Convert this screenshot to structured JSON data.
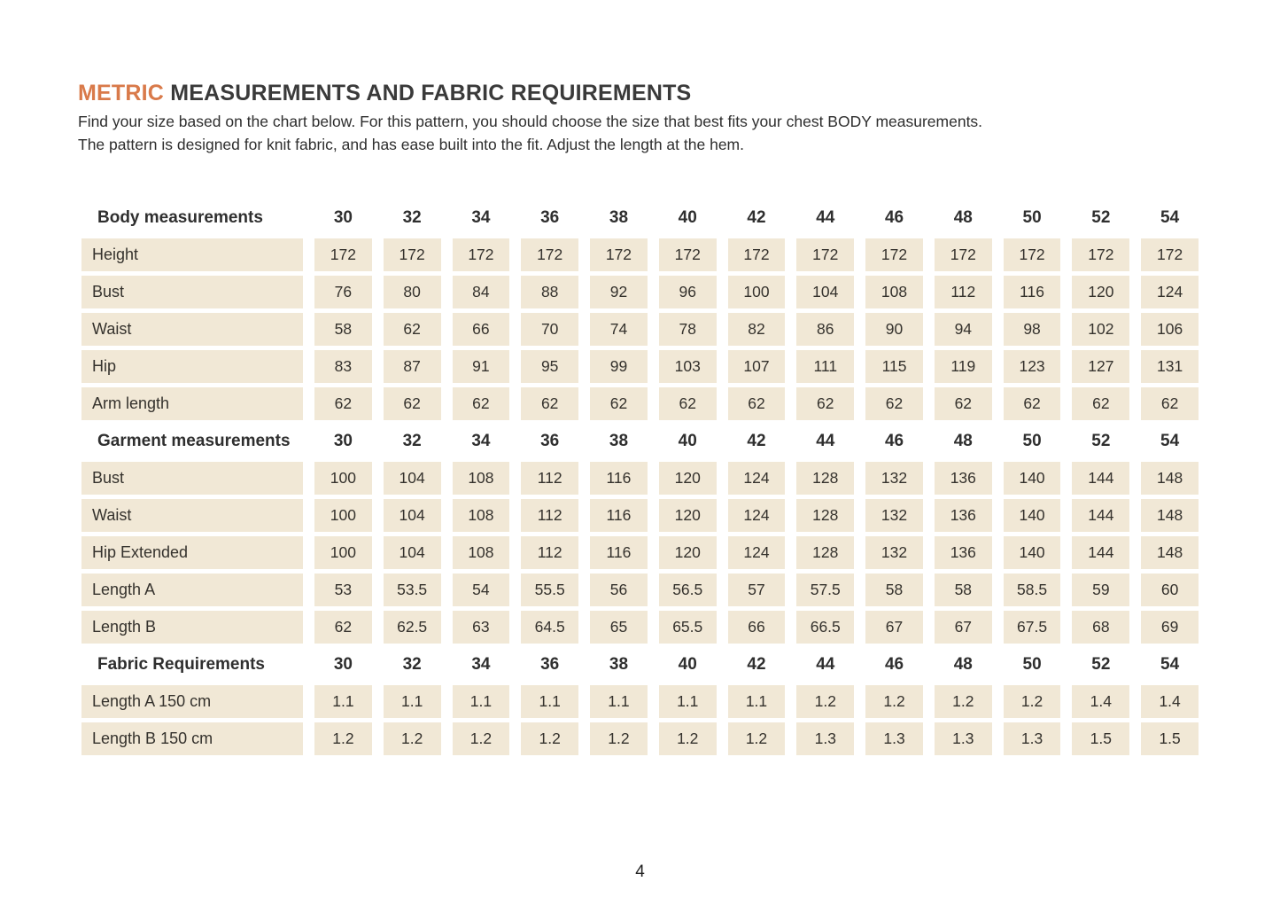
{
  "title": {
    "highlight": "METRIC",
    "rest": "MEASUREMENTS AND FABRIC REQUIREMENTS"
  },
  "intro": {
    "line1": "Find your size based on the chart below. For this pattern, you should choose the size that best fits your chest BODY measurements.",
    "line2": "The pattern is designed for knit fabric, and has ease built into the fit.  Adjust the length at the hem."
  },
  "colors": {
    "accent": "#d97a4a",
    "cell_bg": "#f1e8d6",
    "text": "#35322d"
  },
  "table": {
    "sizes": [
      "30",
      "32",
      "34",
      "36",
      "38",
      "40",
      "42",
      "44",
      "46",
      "48",
      "50",
      "52",
      "54"
    ],
    "sections": [
      {
        "header": "Body measurements",
        "rows": [
          {
            "label": "Height",
            "values": [
              "172",
              "172",
              "172",
              "172",
              "172",
              "172",
              "172",
              "172",
              "172",
              "172",
              "172",
              "172",
              "172"
            ]
          },
          {
            "label": "Bust",
            "values": [
              "76",
              "80",
              "84",
              "88",
              "92",
              "96",
              "100",
              "104",
              "108",
              "112",
              "116",
              "120",
              "124"
            ]
          },
          {
            "label": "Waist",
            "values": [
              "58",
              "62",
              "66",
              "70",
              "74",
              "78",
              "82",
              "86",
              "90",
              "94",
              "98",
              "102",
              "106"
            ]
          },
          {
            "label": "Hip",
            "values": [
              "83",
              "87",
              "91",
              "95",
              "99",
              "103",
              "107",
              "111",
              "115",
              "119",
              "123",
              "127",
              "131"
            ]
          },
          {
            "label": "Arm length",
            "values": [
              "62",
              "62",
              "62",
              "62",
              "62",
              "62",
              "62",
              "62",
              "62",
              "62",
              "62",
              "62",
              "62"
            ]
          }
        ]
      },
      {
        "header": "Garment measurements",
        "rows": [
          {
            "label": "Bust",
            "values": [
              "100",
              "104",
              "108",
              "112",
              "116",
              "120",
              "124",
              "128",
              "132",
              "136",
              "140",
              "144",
              "148"
            ]
          },
          {
            "label": "Waist",
            "values": [
              "100",
              "104",
              "108",
              "112",
              "116",
              "120",
              "124",
              "128",
              "132",
              "136",
              "140",
              "144",
              "148"
            ]
          },
          {
            "label": "Hip Extended",
            "values": [
              "100",
              "104",
              "108",
              "112",
              "116",
              "120",
              "124",
              "128",
              "132",
              "136",
              "140",
              "144",
              "148"
            ]
          },
          {
            "label": "Length A",
            "values": [
              "53",
              "53.5",
              "54",
              "55.5",
              "56",
              "56.5",
              "57",
              "57.5",
              "58",
              "58",
              "58.5",
              "59",
              "60"
            ]
          },
          {
            "label": "Length B",
            "values": [
              "62",
              "62.5",
              "63",
              "64.5",
              "65",
              "65.5",
              "66",
              "66.5",
              "67",
              "67",
              "67.5",
              "68",
              "69"
            ]
          }
        ]
      },
      {
        "header": "Fabric Requirements",
        "rows": [
          {
            "label": "Length A 150 cm",
            "values": [
              "1.1",
              "1.1",
              "1.1",
              "1.1",
              "1.1",
              "1.1",
              "1.1",
              "1.2",
              "1.2",
              "1.2",
              "1.2",
              "1.4",
              "1.4"
            ]
          },
          {
            "label": "Length B 150 cm",
            "values": [
              "1.2",
              "1.2",
              "1.2",
              "1.2",
              "1.2",
              "1.2",
              "1.2",
              "1.3",
              "1.3",
              "1.3",
              "1.3",
              "1.5",
              "1.5"
            ]
          }
        ]
      }
    ]
  },
  "page": {
    "number": "4"
  }
}
